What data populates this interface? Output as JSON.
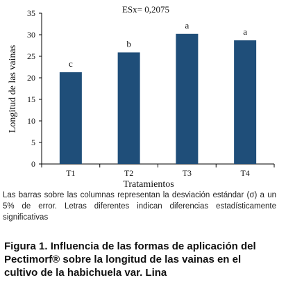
{
  "chart_data": {
    "type": "bar",
    "annotation": "ESx= 0,2075",
    "categories": [
      "T1",
      "T2",
      "T3",
      "T4"
    ],
    "values": [
      21.3,
      25.9,
      30.2,
      28.7
    ],
    "letters": [
      "c",
      "b",
      "a",
      "a"
    ],
    "xlabel": "Tratamientos",
    "ylabel": "Longitud de las vainas",
    "ylim": [
      0,
      35
    ],
    "yticks": [
      0,
      5,
      10,
      15,
      20,
      25,
      30,
      35
    ],
    "bar_color": "#1f4e79",
    "grid": false
  },
  "note": "Las barras sobre las columnas representan la desviación estándar (σ) a un 5% de error. Letras diferentes indican diferencias estadísticamente significativas",
  "caption": {
    "label": "Figura 1.",
    "text": "Influencia de las formas de aplicación del Pectimorf® sobre la longitud de las vainas en el cultivo de la habichuela var. Lina"
  }
}
